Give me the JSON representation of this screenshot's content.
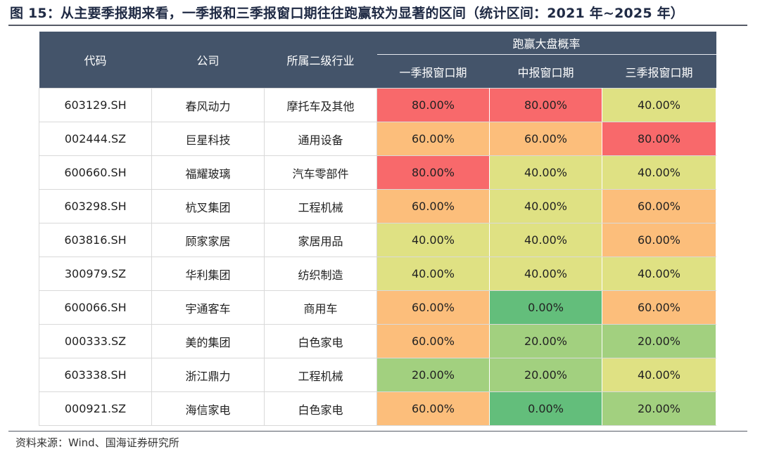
{
  "title": "图 15：从主要季报期来看，一季报和三季报窗口期往往跑赢较为显著的区间（统计区间：2021 年~2025 年）",
  "table": {
    "headers": {
      "code": "代码",
      "company": "公司",
      "industry": "所属二级行业",
      "group": "跑赢大盘概率",
      "q1": "一季报窗口期",
      "mid": "中报窗口期",
      "q3": "三季报窗口期"
    },
    "colors": {
      "0.00%": "#63be7b",
      "20.00%": "#a2d07f",
      "40.00%": "#dfe183",
      "60.00%": "#fcbe7b",
      "80.00%": "#f8696b"
    },
    "rows": [
      {
        "code": "603129.SH",
        "company": "春风动力",
        "industry": "摩托车及其他",
        "q1": "80.00%",
        "mid": "80.00%",
        "q3": "40.00%"
      },
      {
        "code": "002444.SZ",
        "company": "巨星科技",
        "industry": "通用设备",
        "q1": "60.00%",
        "mid": "60.00%",
        "q3": "80.00%"
      },
      {
        "code": "600660.SH",
        "company": "福耀玻璃",
        "industry": "汽车零部件",
        "q1": "80.00%",
        "mid": "40.00%",
        "q3": "40.00%"
      },
      {
        "code": "603298.SH",
        "company": "杭叉集团",
        "industry": "工程机械",
        "q1": "60.00%",
        "mid": "40.00%",
        "q3": "60.00%"
      },
      {
        "code": "603816.SH",
        "company": "顾家家居",
        "industry": "家居用品",
        "q1": "40.00%",
        "mid": "40.00%",
        "q3": "60.00%"
      },
      {
        "code": "300979.SZ",
        "company": "华利集团",
        "industry": "纺织制造",
        "q1": "40.00%",
        "mid": "40.00%",
        "q3": "40.00%"
      },
      {
        "code": "600066.SH",
        "company": "宇通客车",
        "industry": "商用车",
        "q1": "60.00%",
        "mid": "0.00%",
        "q3": "60.00%"
      },
      {
        "code": "000333.SZ",
        "company": "美的集团",
        "industry": "白色家电",
        "q1": "60.00%",
        "mid": "20.00%",
        "q3": "20.00%"
      },
      {
        "code": "603338.SH",
        "company": "浙江鼎力",
        "industry": "工程机械",
        "q1": "20.00%",
        "mid": "20.00%",
        "q3": "40.00%"
      },
      {
        "code": "000921.SZ",
        "company": "海信家电",
        "industry": "白色家电",
        "q1": "60.00%",
        "mid": "0.00%",
        "q3": "20.00%"
      }
    ]
  },
  "source": "资料来源：Wind、国海证券研究所"
}
